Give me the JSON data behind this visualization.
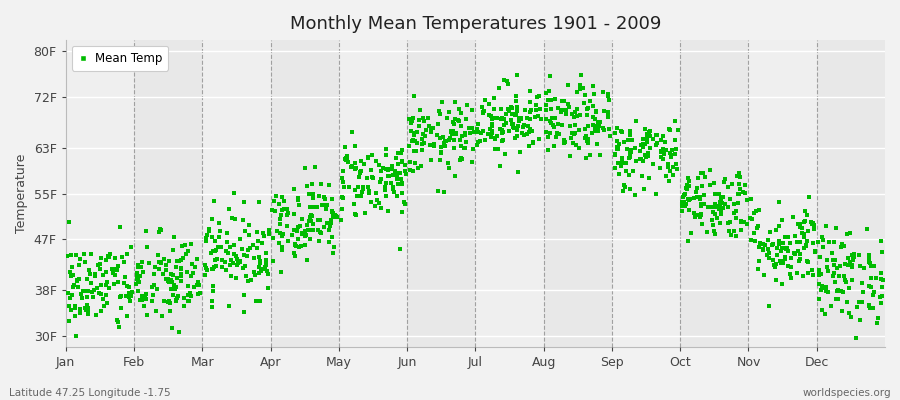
{
  "title": "Monthly Mean Temperatures 1901 - 2009",
  "ylabel": "Temperature",
  "xlabel_labels": [
    "Jan",
    "Feb",
    "Mar",
    "Apr",
    "May",
    "Jun",
    "Jul",
    "Aug",
    "Sep",
    "Oct",
    "Nov",
    "Dec"
  ],
  "ytick_labels": [
    "30F",
    "38F",
    "47F",
    "55F",
    "63F",
    "72F",
    "80F"
  ],
  "ytick_values": [
    30,
    38,
    47,
    55,
    63,
    72,
    80
  ],
  "ylim": [
    28,
    82
  ],
  "xlim": [
    0,
    12
  ],
  "dot_color": "#00bb00",
  "background_color": "#f2f2f2",
  "plot_background_light": "#efefef",
  "plot_background_dark": "#e8e8e8",
  "footer_left": "Latitude 47.25 Longitude -1.75",
  "footer_right": "worldspecies.org",
  "n_years": 109,
  "monthly_means": [
    38.5,
    39.5,
    44.5,
    50.5,
    57.5,
    64.5,
    68.0,
    67.5,
    62.0,
    53.5,
    46.0,
    40.5
  ],
  "monthly_stds": [
    4.2,
    4.2,
    3.8,
    3.5,
    3.5,
    3.2,
    3.2,
    3.2,
    3.2,
    3.2,
    3.8,
    4.2
  ],
  "xtick_positions": [
    0,
    1,
    2,
    3,
    4,
    5,
    6,
    7,
    8,
    9,
    10,
    11
  ],
  "vline_positions": [
    1,
    2,
    3,
    4,
    5,
    6,
    7,
    8,
    9,
    10,
    11
  ]
}
